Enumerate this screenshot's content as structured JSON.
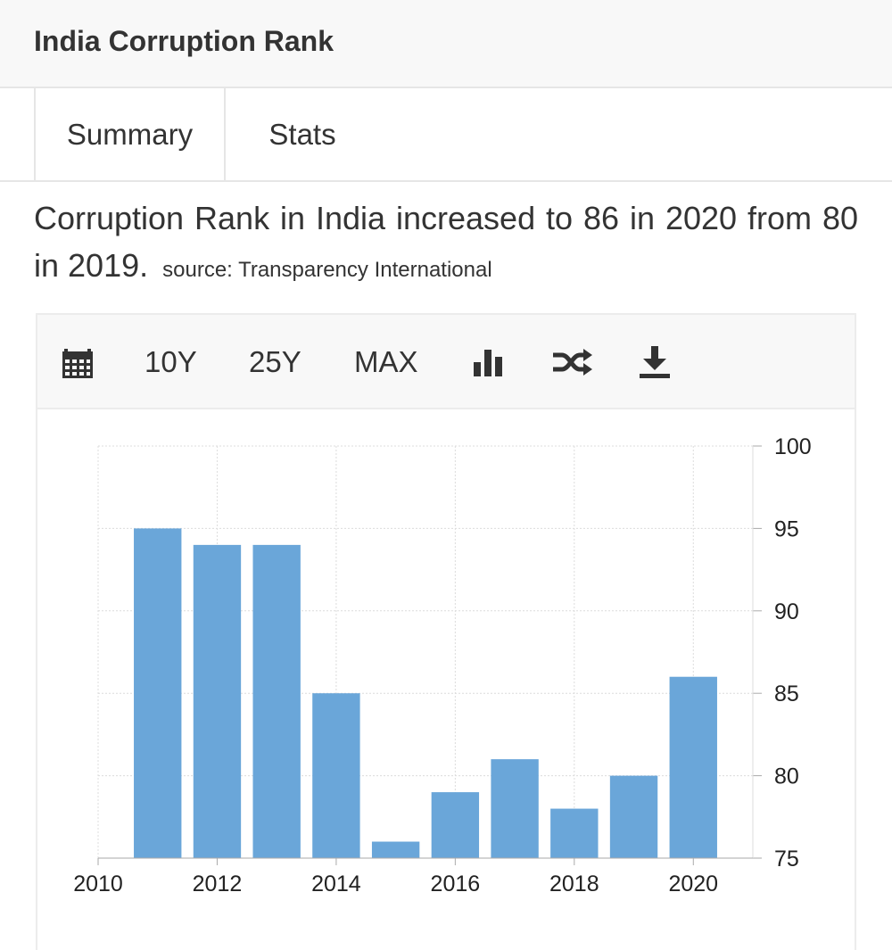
{
  "header": {
    "title": "India Corruption Rank"
  },
  "tabs": [
    {
      "label": "Summary"
    },
    {
      "label": "Stats"
    }
  ],
  "summary": {
    "text": "Corruption Rank in India increased to 86 in 2020 from 80 in 2019.",
    "source": "source: Transparency International"
  },
  "toolbar": {
    "calendar_icon": "calendar-icon",
    "range_10y": "10Y",
    "range_25y": "25Y",
    "range_max": "MAX",
    "chart_type_icon": "bar-chart-icon",
    "compare_icon": "shuffle-icon",
    "download_icon": "download-icon"
  },
  "colors": {
    "bar": "#6aa6d9",
    "grid": "#dcdcdc",
    "axis": "#aaaaaa"
  },
  "chart_data": {
    "type": "bar",
    "categories": [
      "2011",
      "2012",
      "2013",
      "2014",
      "2015",
      "2016",
      "2017",
      "2018",
      "2019",
      "2020"
    ],
    "values": [
      95,
      94,
      94,
      85,
      76,
      79,
      81,
      78,
      80,
      86
    ],
    "x_ticks": [
      "2010",
      "2012",
      "2014",
      "2016",
      "2018",
      "2020"
    ],
    "y_ticks": [
      75,
      80,
      85,
      90,
      95,
      100
    ],
    "ylim": [
      75,
      100
    ],
    "xlim": [
      2010,
      2021
    ],
    "y_axis_position": "right",
    "grid": true
  }
}
